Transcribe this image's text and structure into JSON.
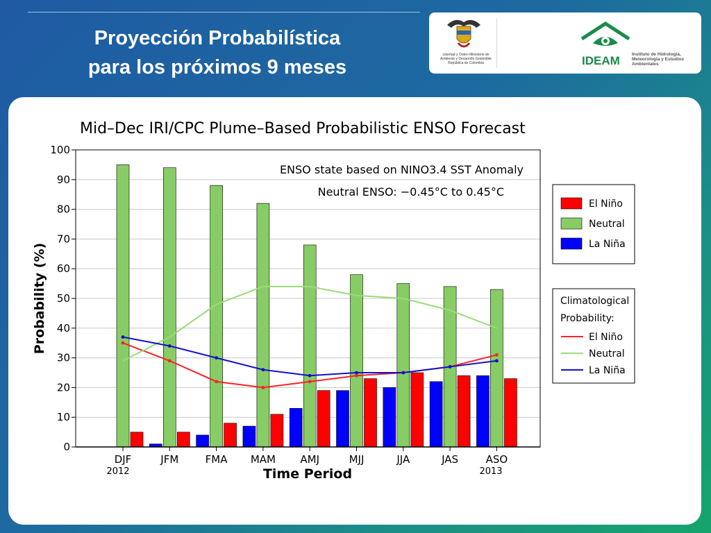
{
  "slide": {
    "title_line1": "Proyección Probabilística",
    "title_line2": "para los próximos 9 meses"
  },
  "logos": {
    "ministerio": "Libertad y Orden Ministerio de Ambiente y Desarrollo Sostenible República de Colombia",
    "ideam": "IDEAM",
    "instituto": "Instituto de Hidrología, Meteorología y Estudios Ambientales"
  },
  "chart_data": {
    "type": "bar",
    "title": "Mid–Dec IRI/CPC Plume–Based Probabilistic ENSO Forecast",
    "xlabel": "Time Period",
    "ylabel": "Probability (%)",
    "ylim": [
      0,
      100
    ],
    "yticks": [
      0,
      10,
      20,
      30,
      40,
      50,
      60,
      70,
      80,
      90,
      100
    ],
    "grid": true,
    "categories": [
      "DJF",
      "JFM",
      "FMA",
      "MAM",
      "AMJ",
      "MJJ",
      "JJA",
      "JAS",
      "ASO"
    ],
    "year_labels": {
      "first": "2012",
      "last": "2013"
    },
    "annotation_line1": "ENSO state based on NINO3.4 SST Anomaly",
    "annotation_line2": "Neutral ENSO: −0.45°C to 0.45°C",
    "series": [
      {
        "name": "La Niña",
        "color": "#0000ff",
        "values": [
          0,
          1,
          4,
          7,
          13,
          19,
          20,
          22,
          24
        ]
      },
      {
        "name": "Neutral",
        "color": "#88cc66",
        "values": [
          95,
          94,
          88,
          82,
          68,
          58,
          55,
          54,
          53
        ]
      },
      {
        "name": "El Niño",
        "color": "#ff0000",
        "values": [
          5,
          5,
          8,
          11,
          19,
          23,
          25,
          24,
          23
        ]
      }
    ],
    "legend_title": "",
    "climatology_title_line1": "Climatological",
    "climatology_title_line2": "Probability:",
    "climatology": [
      {
        "name": "El Niño",
        "color": "#ff2222",
        "values": [
          35,
          29,
          22,
          20,
          22,
          24,
          25,
          27,
          31
        ]
      },
      {
        "name": "Neutral",
        "color": "#99dd77",
        "values": [
          29,
          37,
          48,
          54,
          54,
          51,
          50,
          46,
          40
        ]
      },
      {
        "name": "La Niña",
        "color": "#1111cc",
        "values": [
          37,
          34,
          30,
          26,
          24,
          25,
          25,
          27,
          29
        ]
      }
    ],
    "legend_position": "right"
  }
}
